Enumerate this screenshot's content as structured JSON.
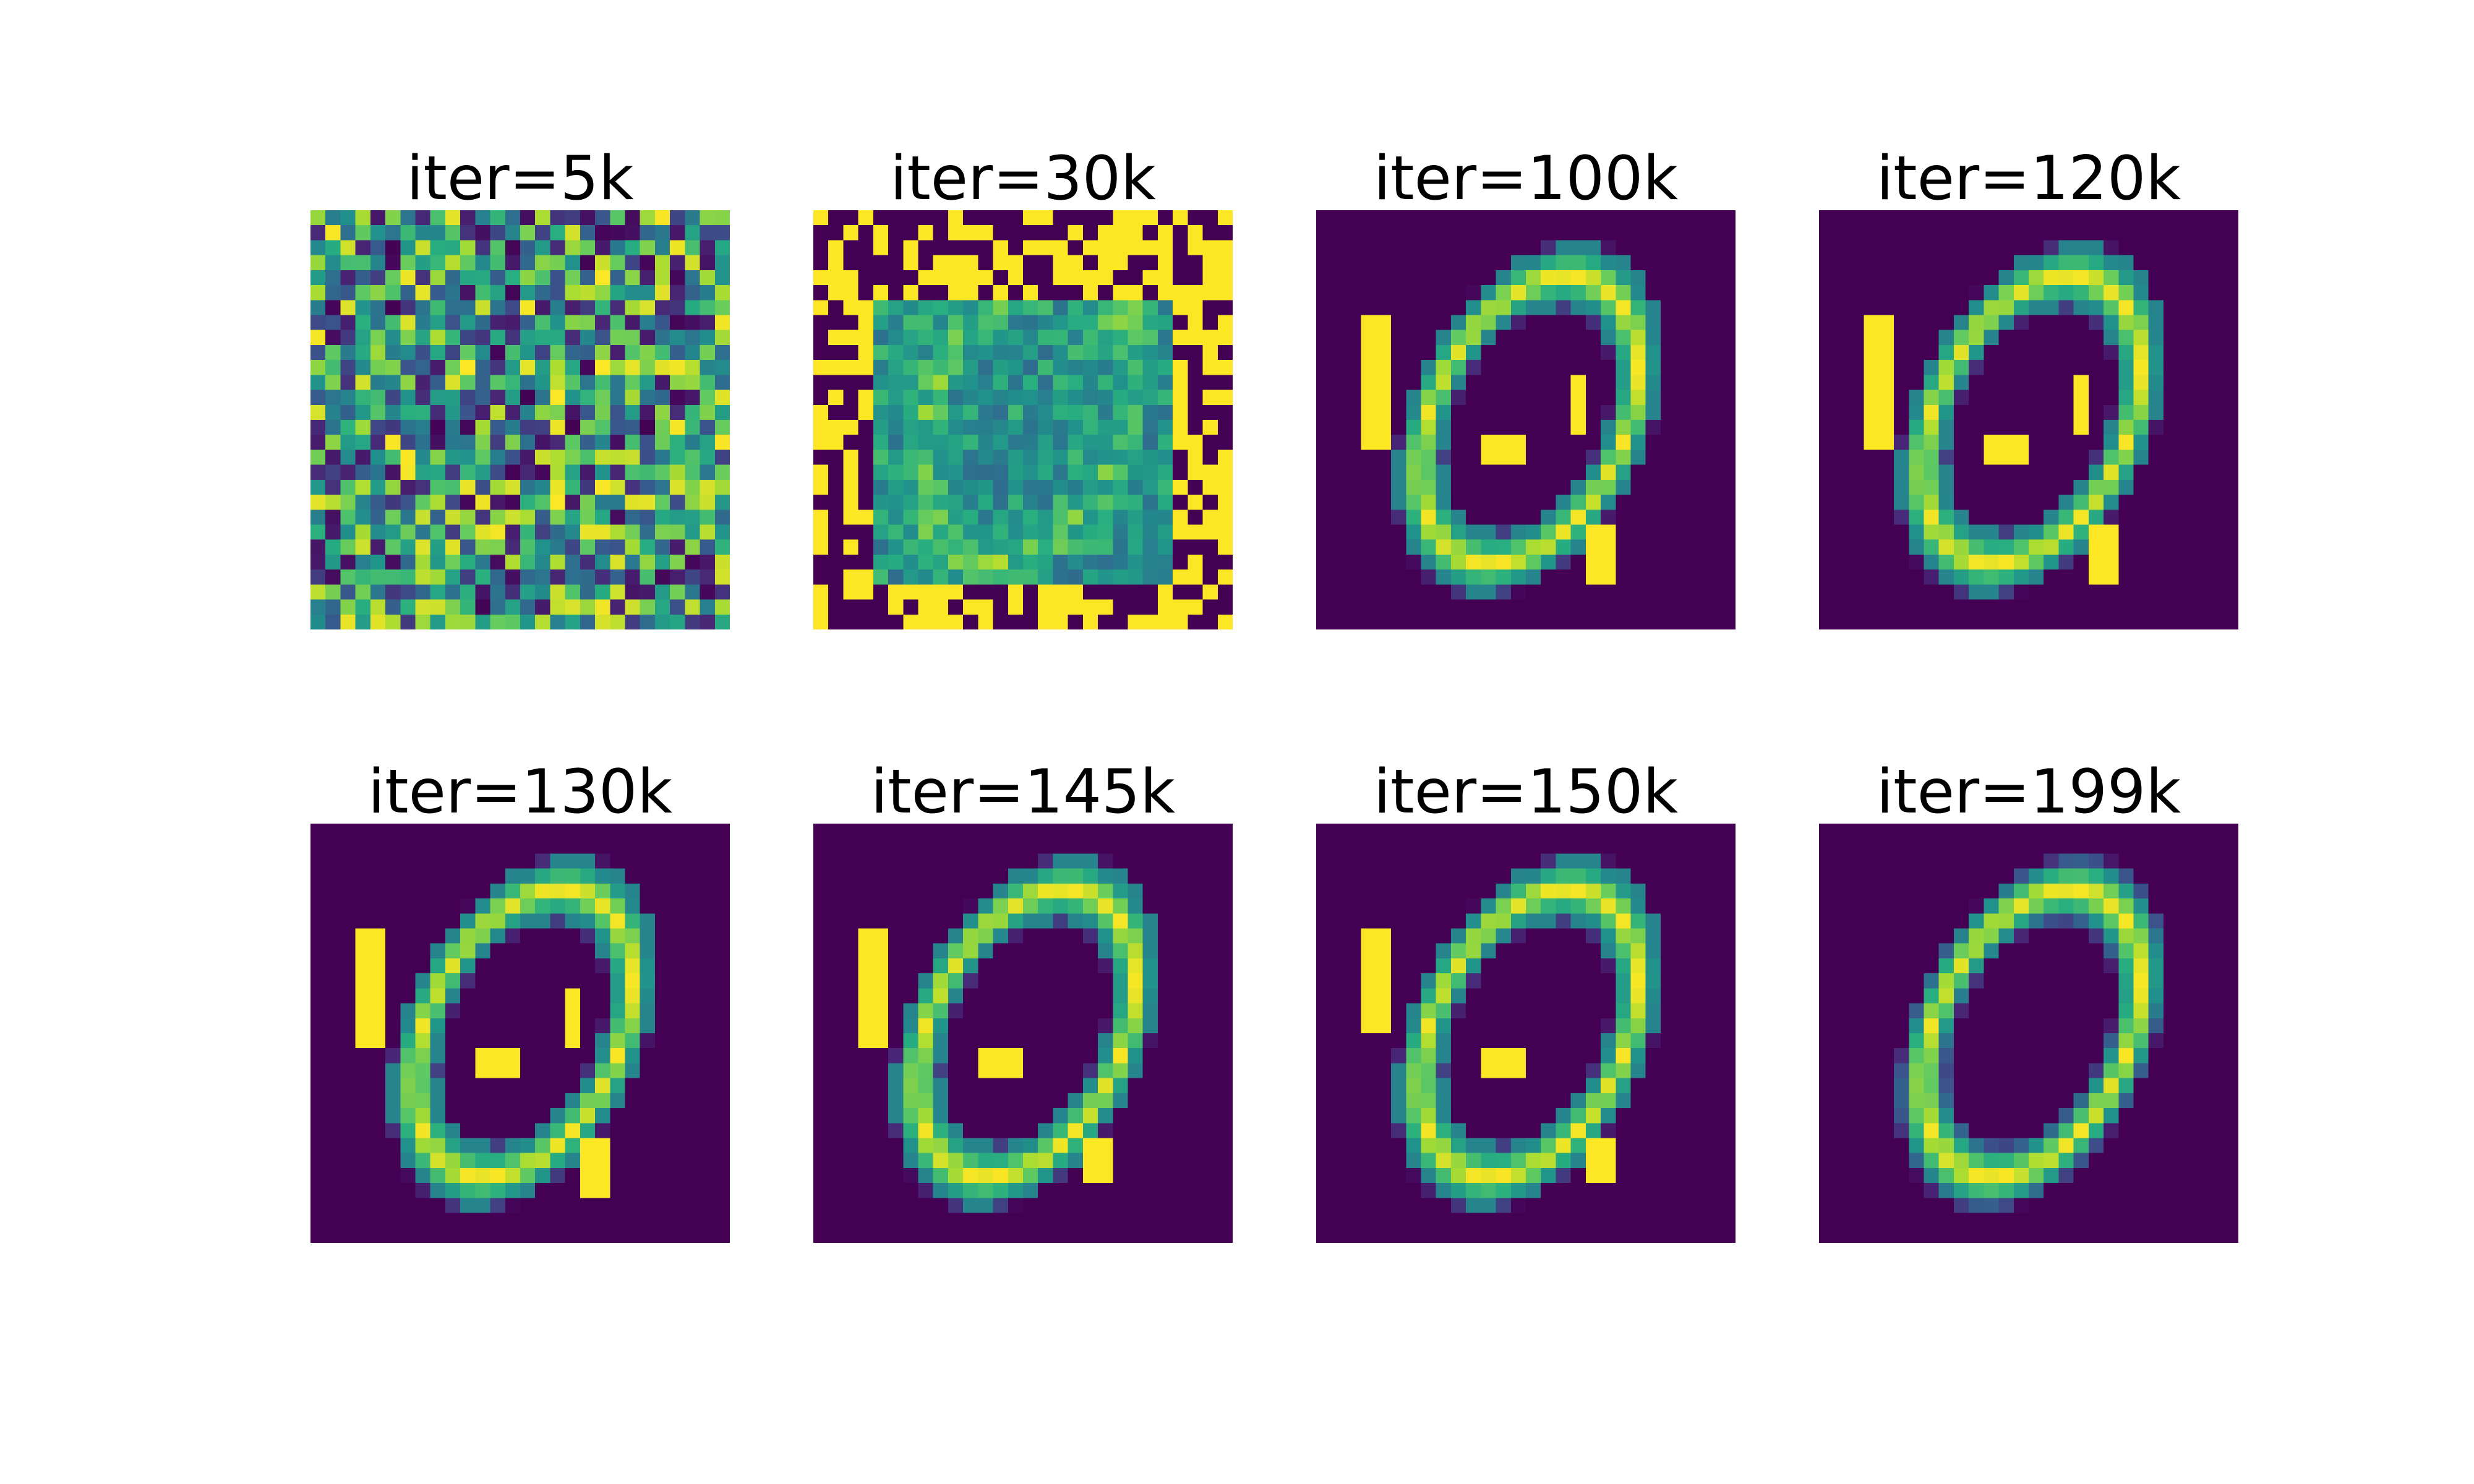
{
  "figure": {
    "colormap": "viridis",
    "grid_size": 28,
    "rows": 2,
    "columns": 4,
    "panels": [
      {
        "title": "iter=5k",
        "stage": 0
      },
      {
        "title": "iter=30k",
        "stage": 1
      },
      {
        "title": "iter=100k",
        "stage": 2
      },
      {
        "title": "iter=120k",
        "stage": 3
      },
      {
        "title": "iter=130k",
        "stage": 4
      },
      {
        "title": "iter=145k",
        "stage": 5
      },
      {
        "title": "iter=150k",
        "stage": 6
      },
      {
        "title": "iter=199k",
        "stage": 7
      }
    ],
    "colors": {
      "background": "#ffffff",
      "low": "#440154",
      "mid": "#21918c",
      "high": "#fde725"
    }
  }
}
